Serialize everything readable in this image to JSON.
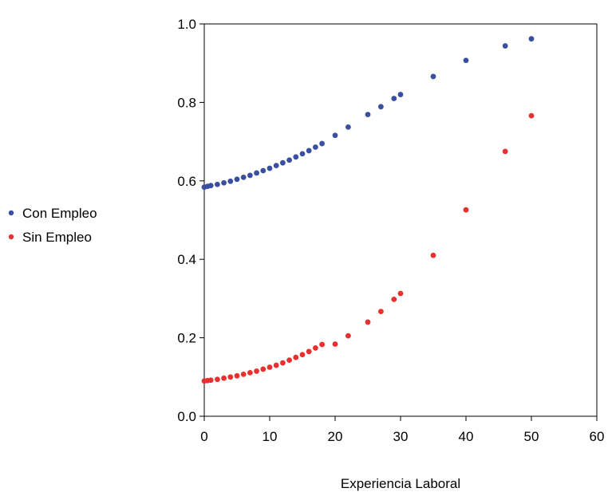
{
  "chart_data": {
    "type": "scatter",
    "title": "",
    "xlabel": "Experiencia Laboral",
    "ylabel": "",
    "xlim": [
      0,
      60
    ],
    "ylim": [
      0,
      1
    ],
    "xticks": [
      "0",
      "10",
      "20",
      "30",
      "40",
      "50",
      "60"
    ],
    "yticks": [
      "0.0",
      "0.2",
      "0.4",
      "0.6",
      "0.8",
      "1.0"
    ],
    "grid": false,
    "legend_position": "left",
    "x": [
      0,
      0.5,
      1,
      2,
      3,
      4,
      5,
      6,
      7,
      8,
      9,
      10,
      11,
      12,
      13,
      14,
      15,
      16,
      17,
      18,
      20,
      22,
      25,
      27,
      29,
      30,
      35,
      40,
      46,
      50
    ],
    "series": [
      {
        "name": "Con Empleo",
        "color": "#3b4fa0",
        "values": [
          0.584,
          0.586,
          0.588,
          0.591,
          0.595,
          0.599,
          0.604,
          0.609,
          0.614,
          0.62,
          0.626,
          0.632,
          0.639,
          0.646,
          0.653,
          0.661,
          0.669,
          0.677,
          0.686,
          0.695,
          0.716,
          0.737,
          0.769,
          0.789,
          0.81,
          0.82,
          0.866,
          0.907,
          0.944,
          0.962
        ]
      },
      {
        "name": "Sin Empleo",
        "color": "#e8312f",
        "values": [
          0.09,
          0.091,
          0.092,
          0.094,
          0.097,
          0.1,
          0.103,
          0.107,
          0.111,
          0.115,
          0.12,
          0.125,
          0.13,
          0.136,
          0.143,
          0.15,
          0.157,
          0.165,
          0.174,
          0.183,
          0.184,
          0.205,
          0.24,
          0.267,
          0.298,
          0.313,
          0.41,
          0.526,
          0.675,
          0.766
        ]
      }
    ]
  }
}
